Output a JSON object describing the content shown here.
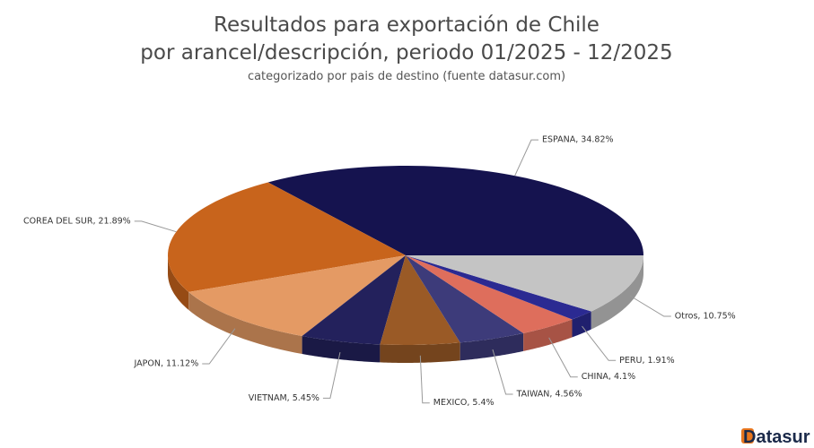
{
  "chart_data": {
    "type": "pie3d",
    "title": [
      "Resultados para exportación de Chile",
      "por arancel/descripción, periodo 01/2025 - 12/2025"
    ],
    "subtitle": "categorizado por pais de destino (fuente datasur.com)",
    "values": [
      34.82,
      21.89,
      11.12,
      5.45,
      5.4,
      4.56,
      4.1,
      1.91,
      10.75
    ],
    "value_labels": [
      "ESPANA, 34.82%",
      "COREA DEL SUR, 21.89%",
      "JAPON, 11.12%",
      "VIETNAM, 5.45%",
      "MEXICO, 5.4%",
      "TAIWAN, 4.56%",
      "CHINA, 4.1%",
      "PERU, 1.91%",
      "Otros, 10.75%"
    ],
    "colors": [
      "#15134f",
      "#c8641c",
      "#e49a64",
      "#23215c",
      "#9a5a26",
      "#3d3b7a",
      "#de6e5c",
      "#2b2a92",
      "#c4c4c4"
    ]
  },
  "logo": "Datasur"
}
